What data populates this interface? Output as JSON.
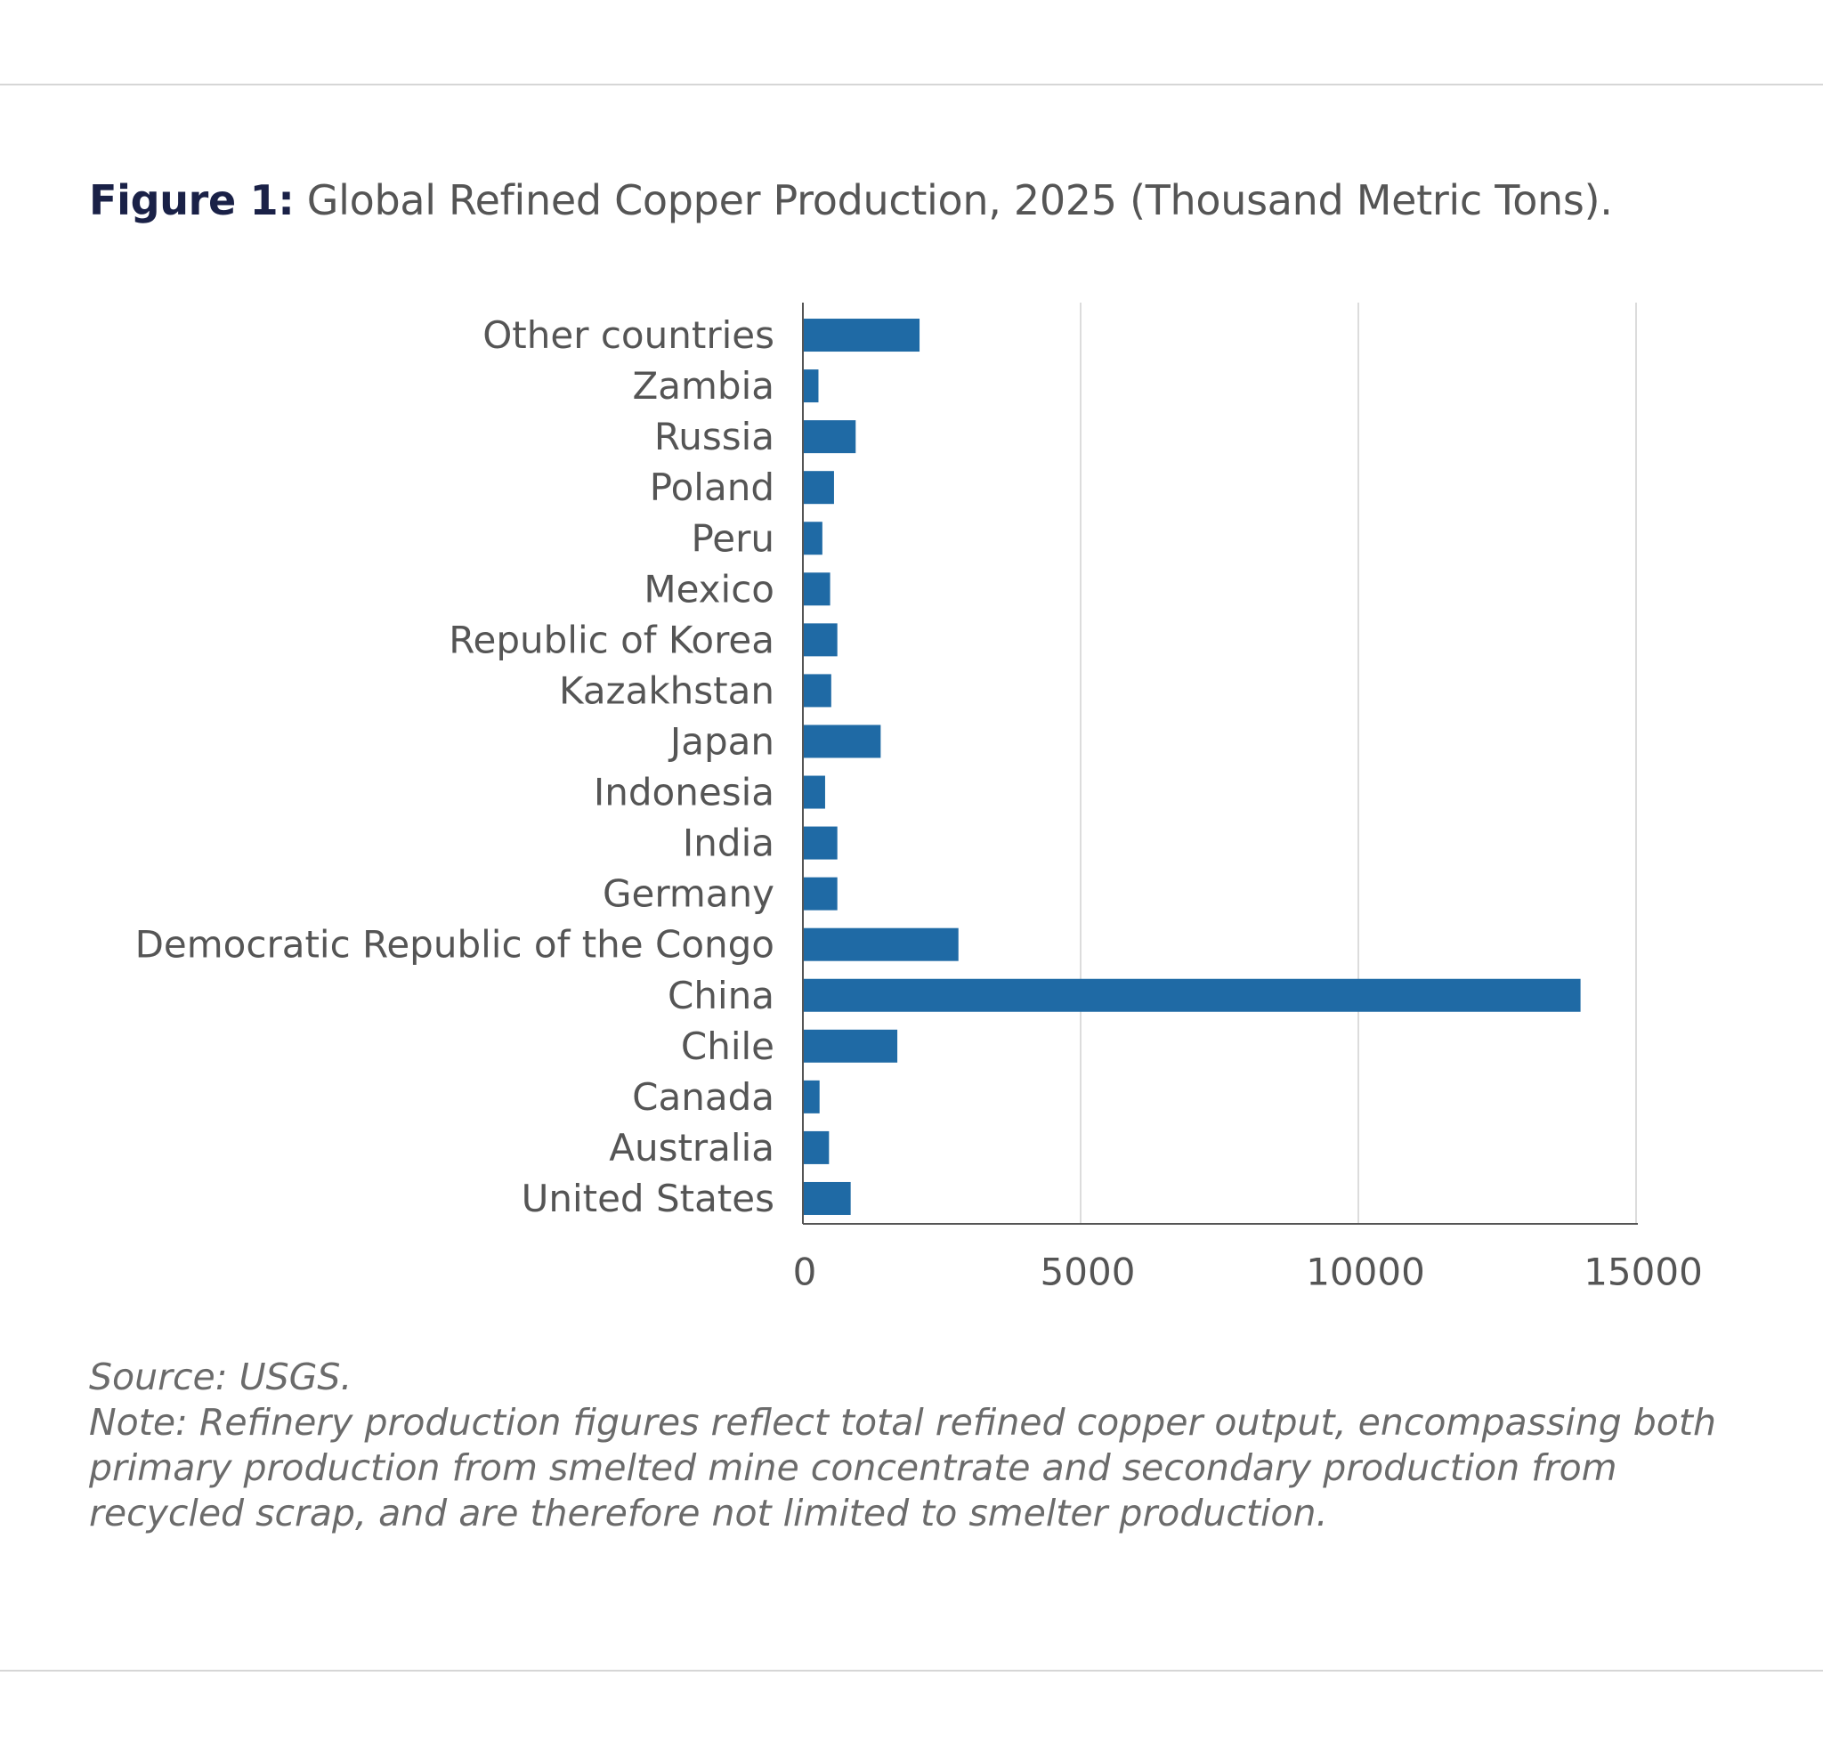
{
  "figure": {
    "label": "Figure 1:",
    "title": "Global Refined Copper Production, 2025 (Thousand Metric Tons)."
  },
  "source": "Source: USGS.",
  "note": "Note: Refinery production figures reflect total refined copper output, encompassing both primary production from smelted mine concentrate and secondary production from recycled scrap, and are therefore not limited to smelter production.",
  "colors": {
    "bar": "#1f6aa5",
    "gridline": "#dcdcdc",
    "axis": "#555555"
  },
  "chart_data": {
    "type": "bar",
    "orientation": "horizontal",
    "categories": [
      "Other countries",
      "Zambia",
      "Russia",
      "Poland",
      "Peru",
      "Mexico",
      "Republic of Korea",
      "Kazakhstan",
      "Japan",
      "Indonesia",
      "India",
      "Germany",
      "Democratic Republic of the Congo",
      "China",
      "Chile",
      "Canada",
      "Australia",
      "United States"
    ],
    "values": [
      2100,
      280,
      950,
      560,
      350,
      490,
      620,
      510,
      1400,
      400,
      620,
      620,
      2800,
      14000,
      1700,
      300,
      470,
      860
    ],
    "xlim": [
      0,
      15000
    ],
    "xticks": [
      0,
      5000,
      10000,
      15000
    ],
    "grid": "vertical",
    "legend": "none"
  }
}
